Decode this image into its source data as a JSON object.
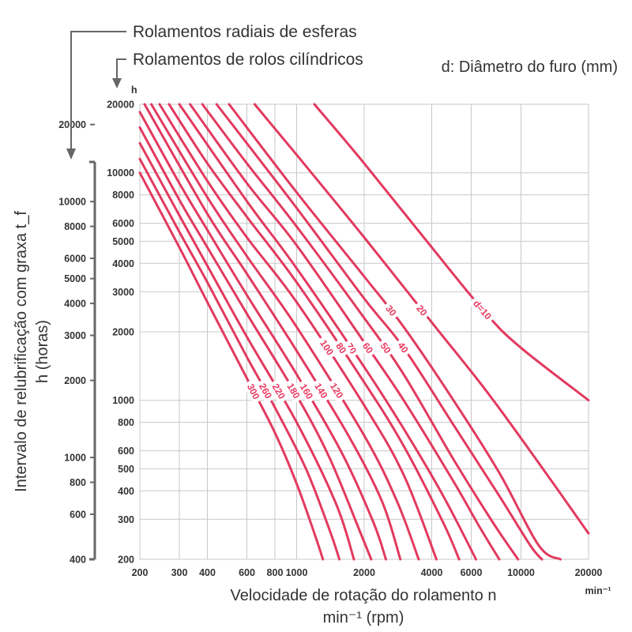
{
  "annotations": {
    "ball_bearings": "Rolamentos radiais de esferas",
    "roller_bearings": "Rolamentos de rolos cilíndricos"
  },
  "chart_data": {
    "type": "line",
    "title": "d: Diâmetro do furo (mm)",
    "xlabel_line1": "Velocidade de rotação do rolamento n",
    "xlabel_line2": "min⁻¹ (rpm)",
    "x_unit": "min⁻¹",
    "ylabel_line1": "Intervalo de relubrificação com graxa t_f",
    "ylabel_line2": "h (horas)",
    "y_unit": "h",
    "x_scale": "log",
    "y_scale": "log",
    "xlim": [
      200,
      20000
    ],
    "ylim_roller": [
      200,
      20000
    ],
    "ylim_ball": [
      400,
      24000
    ],
    "grid": true,
    "x_ticks": [
      "200",
      "300",
      "400",
      "600",
      "800",
      "1000",
      "2000",
      "4000",
      "6000",
      "10000",
      "20000"
    ],
    "y_ticks_roller": [
      "20000",
      "10000",
      "8000",
      "6000",
      "5000",
      "4000",
      "3000",
      "2000",
      "1000",
      "800",
      "600",
      "500",
      "400",
      "300",
      "200"
    ],
    "y_ticks_ball": [
      "20000",
      "10000",
      "8000",
      "6000",
      "5000",
      "4000",
      "3000",
      "2000",
      "1000",
      "800",
      "600",
      "400"
    ],
    "series": [
      {
        "name": "d=10",
        "x": [
          1200,
          2000,
          4000,
          7000,
          10000,
          20000
        ],
        "y": [
          20000,
          11000,
          4700,
          2400,
          1700,
          1000
        ]
      },
      {
        "name": "20",
        "x": [
          650,
          1000,
          2000,
          4000,
          7000,
          12000,
          20000
        ],
        "y": [
          20000,
          12000,
          5200,
          2200,
          1100,
          530,
          260
        ]
      },
      {
        "name": "30",
        "x": [
          500,
          1000,
          2000,
          3000,
          5000,
          8000,
          12000,
          15000
        ],
        "y": [
          20000,
          8200,
          3500,
          2100,
          1000,
          480,
          230,
          200
        ]
      },
      {
        "name": "40",
        "x": [
          440,
          1000,
          2000,
          3000,
          5000,
          8000,
          11000,
          12400
        ],
        "y": [
          20000,
          7000,
          2800,
          1700,
          780,
          380,
          230,
          200
        ]
      },
      {
        "name": "50",
        "x": [
          380,
          600,
          1000,
          2000,
          3000,
          5000,
          7500,
          9700
        ],
        "y": [
          20000,
          11000,
          5800,
          2300,
          1300,
          550,
          290,
          200
        ]
      },
      {
        "name": "60",
        "x": [
          335,
          600,
          1000,
          2000,
          3000,
          5000,
          6500,
          8000
        ],
        "y": [
          20000,
          9000,
          4800,
          1800,
          1000,
          440,
          280,
          200
        ]
      },
      {
        "name": "70",
        "x": [
          300,
          600,
          1000,
          2000,
          3000,
          4500,
          6300
        ],
        "y": [
          20000,
          7500,
          3800,
          1400,
          750,
          380,
          200
        ]
      },
      {
        "name": "80",
        "x": [
          270,
          400,
          600,
          1000,
          2000,
          3000,
          4500,
          5300
        ],
        "y": [
          20000,
          11000,
          6400,
          3300,
          1200,
          630,
          290,
          200
        ]
      },
      {
        "name": "100",
        "x": [
          245,
          400,
          600,
          1000,
          2000,
          3000,
          4200
        ],
        "y": [
          20000,
          9200,
          5200,
          2700,
          950,
          470,
          200
        ]
      },
      {
        "name": "120",
        "x": [
          225,
          400,
          600,
          1000,
          2000,
          2800,
          3500
        ],
        "y": [
          20000,
          7800,
          4300,
          2100,
          700,
          360,
          200
        ]
      },
      {
        "name": "140",
        "x": [
          210,
          400,
          600,
          1000,
          1700,
          2400,
          2900
        ],
        "y": [
          20000,
          6600,
          3600,
          1650,
          700,
          360,
          200
        ]
      },
      {
        "name": "160",
        "x": [
          200,
          300,
          400,
          600,
          1000,
          1600,
          2200,
          2500
        ],
        "y": [
          18500,
          9000,
          5600,
          2900,
          1300,
          580,
          290,
          200
        ]
      },
      {
        "name": "180",
        "x": [
          200,
          300,
          400,
          600,
          1000,
          1400,
          1900,
          2150
        ],
        "y": [
          15800,
          7600,
          4700,
          2400,
          1050,
          560,
          270,
          200
        ]
      },
      {
        "name": "220",
        "x": [
          200,
          300,
          400,
          600,
          1000,
          1500,
          1800
        ],
        "y": [
          13500,
          6500,
          3900,
          1900,
          800,
          350,
          200
        ]
      },
      {
        "name": "260",
        "x": [
          200,
          300,
          400,
          600,
          800,
          1100,
          1400,
          1550
        ],
        "y": [
          11500,
          5500,
          3300,
          1550,
          930,
          500,
          270,
          200
        ]
      },
      {
        "name": "300",
        "x": [
          200,
          300,
          400,
          600,
          800,
          1000,
          1200,
          1310
        ],
        "y": [
          10000,
          4700,
          2700,
          1250,
          720,
          430,
          260,
          200
        ]
      }
    ]
  }
}
